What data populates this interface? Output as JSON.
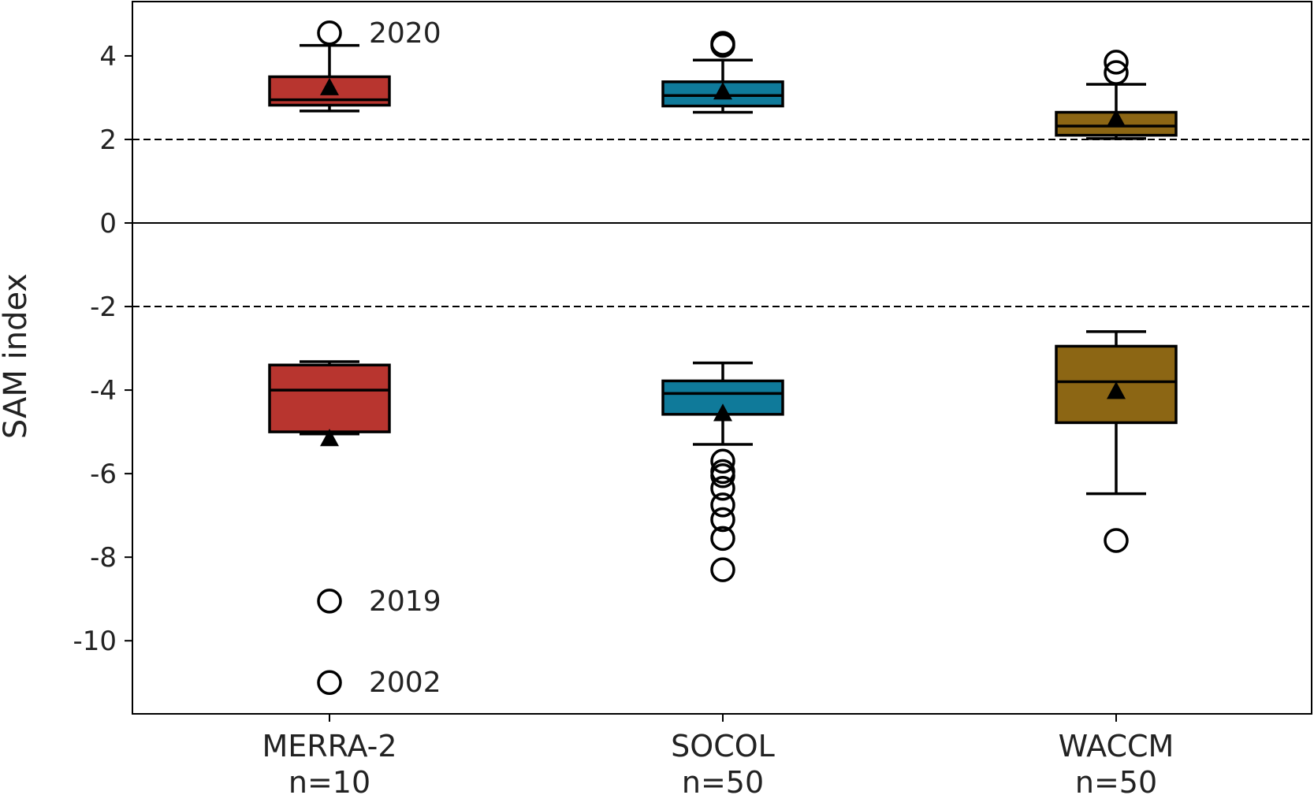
{
  "chart_data": {
    "type": "boxplot",
    "ylabel": "SAM index",
    "ylim": [
      -11.75,
      5.3
    ],
    "yticks": [
      4,
      2,
      0,
      -2,
      -4,
      -6,
      -8,
      -10
    ],
    "ytick_labels": [
      "4",
      "2",
      "0",
      "-2",
      "-4",
      "-6",
      "-8",
      "-10"
    ],
    "reference_lines": [
      {
        "y": 0,
        "style": "solid"
      },
      {
        "y": 2,
        "style": "dashed"
      },
      {
        "y": -2,
        "style": "dashed"
      }
    ],
    "categories": [
      {
        "name": "MERRA-2",
        "n_label": "n=10",
        "color": "#b8352f"
      },
      {
        "name": "SOCOL",
        "n_label": "n=50",
        "color": "#0f7a9a"
      },
      {
        "name": "WACCM",
        "n_label": "n=50",
        "color": "#8c6614"
      }
    ],
    "boxes": [
      {
        "category": "MERRA-2",
        "group": "positive",
        "whislo": 2.68,
        "q1": 2.82,
        "med": 2.95,
        "q3": 3.5,
        "whishi": 4.25,
        "mean": 3.25,
        "fliers": [
          4.55
        ]
      },
      {
        "category": "MERRA-2",
        "group": "negative",
        "whislo": -5.05,
        "q1": -5.0,
        "med": -4.0,
        "q3": -3.4,
        "whishi": -3.32,
        "mean": -5.15,
        "fliers": [
          -9.05,
          -11.0
        ]
      },
      {
        "category": "SOCOL",
        "group": "positive",
        "whislo": 2.65,
        "q1": 2.8,
        "med": 3.05,
        "q3": 3.38,
        "whishi": 3.9,
        "mean": 3.15,
        "fliers": [
          4.25,
          4.3
        ]
      },
      {
        "category": "SOCOL",
        "group": "negative",
        "whislo": -5.3,
        "q1": -4.58,
        "med": -4.08,
        "q3": -3.78,
        "whishi": -3.35,
        "mean": -4.55,
        "fliers": [
          -5.7,
          -5.95,
          -6.05,
          -6.35,
          -6.75,
          -7.1,
          -7.55,
          -8.3
        ]
      },
      {
        "category": "WACCM",
        "group": "positive",
        "whislo": 2.02,
        "q1": 2.1,
        "med": 2.32,
        "q3": 2.65,
        "whishi": 3.32,
        "mean": 2.5,
        "fliers": [
          3.6,
          3.85
        ]
      },
      {
        "category": "WACCM",
        "group": "negative",
        "whislo": -6.48,
        "q1": -4.78,
        "med": -3.8,
        "q3": -2.95,
        "whishi": -2.6,
        "mean": -4.02,
        "fliers": [
          -7.6
        ]
      }
    ],
    "annotations": [
      {
        "text": "2020",
        "category": "MERRA-2",
        "y": 4.55
      },
      {
        "text": "2019",
        "category": "MERRA-2",
        "y": -9.05
      },
      {
        "text": "2002",
        "category": "MERRA-2",
        "y": -11.0
      }
    ],
    "legend": "none",
    "grid": false
  }
}
